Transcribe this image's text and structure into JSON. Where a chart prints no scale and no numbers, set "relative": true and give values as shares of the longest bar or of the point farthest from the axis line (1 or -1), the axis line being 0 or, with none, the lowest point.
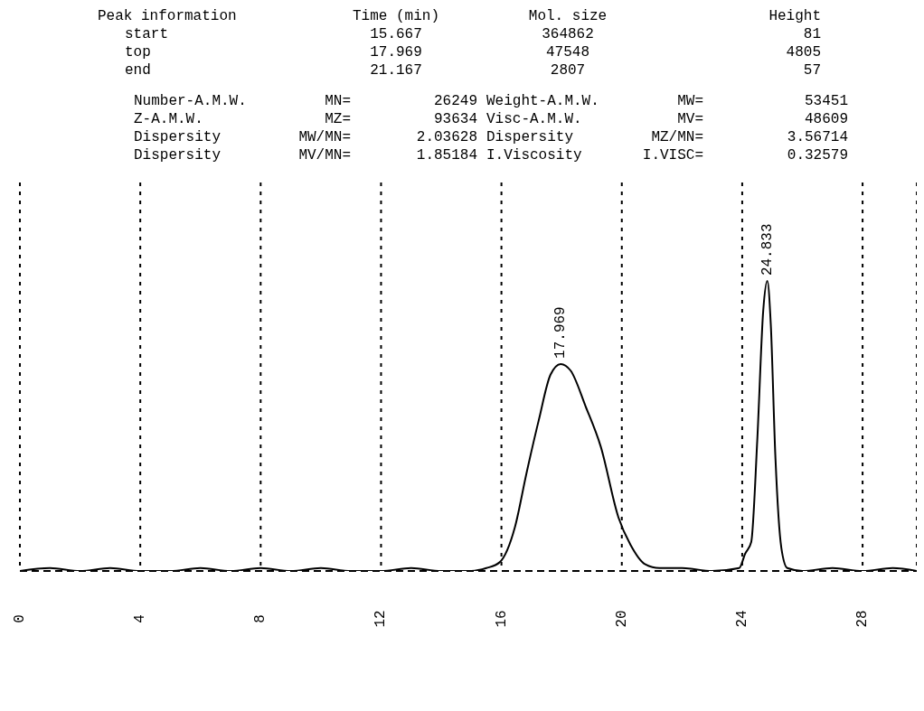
{
  "chart_data": {
    "type": "line",
    "relative": true,
    "x": [
      0,
      1,
      2,
      3,
      4,
      5,
      6,
      7,
      8,
      9,
      10,
      11,
      12,
      13,
      14,
      15,
      15.5,
      15.94,
      16.45,
      16.83,
      17.24,
      17.63,
      17.969,
      18.3,
      18.8,
      19.3,
      19.89,
      20.28,
      20.78,
      21.25,
      22,
      23,
      23.9,
      24.1,
      24.3,
      24.5,
      24.7,
      24.833,
      24.95,
      25.1,
      25.3,
      25.5,
      26,
      27,
      28,
      29,
      29.8
    ],
    "series": [
      {
        "color": "#000000",
        "values": [
          0.0,
          0.01,
          0.0,
          0.01,
          0.0,
          0.0,
          0.01,
          0.0,
          0.01,
          0.0,
          0.01,
          0.0,
          0.0,
          0.01,
          0.0,
          0.0,
          0.01,
          0.03,
          0.152,
          0.336,
          0.52,
          0.677,
          0.714,
          0.691,
          0.567,
          0.429,
          0.184,
          0.092,
          0.023,
          0.01,
          0.01,
          0.0,
          0.01,
          0.06,
          0.1,
          0.45,
          0.9,
          1,
          0.85,
          0.4,
          0.08,
          0.01,
          0.0,
          0.01,
          0.0,
          0.01,
          0.0
        ]
      }
    ],
    "xlim": [
      0,
      29.8
    ],
    "xticks": [
      0,
      4,
      8,
      12,
      16,
      20,
      24,
      28
    ],
    "grid": "x",
    "line_style": "solid",
    "marker": "none",
    "annotations": [
      "Peak information",
      "Time (min)",
      "Mol. size",
      "Height",
      "start",
      "15.667",
      "364862",
      "81",
      "top",
      "17.969",
      "47548",
      "4805",
      "end",
      "21.167",
      "2807",
      "57",
      "Number-A.M.W.",
      "MN=",
      "26249",
      "Weight-A.M.W.",
      "MW=",
      "53451",
      "Z-A.M.W.",
      "MZ=",
      "93634",
      "Visc-A.M.W.",
      "MV=",
      "48609",
      "Dispersity",
      "MW/MN=",
      "2.03628",
      "Dispersity",
      "MZ/MN=",
      "3.56714",
      "Dispersity",
      "MV/MN=",
      "1.85184",
      "I.Viscosity",
      "I.VISC=",
      "0.32579",
      {
        "text": "17.969",
        "x": 17.969,
        "y": 0.714
      },
      {
        "text": "24.833",
        "x": 24.833,
        "y": 1
      }
    ]
  }
}
